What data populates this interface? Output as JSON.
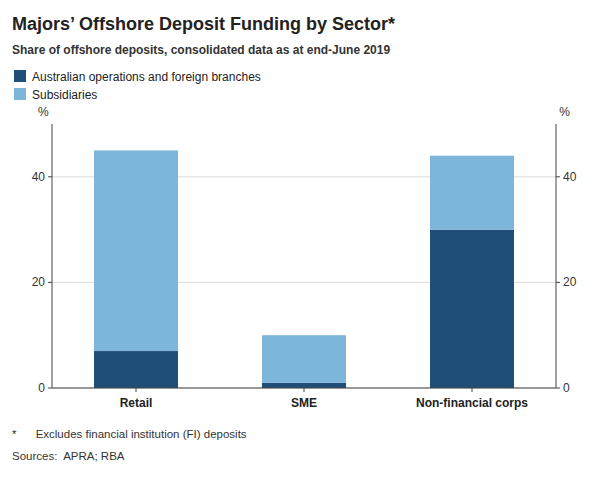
{
  "chart_data": {
    "type": "bar",
    "stacked": true,
    "title": "Majors’ Offshore Deposit Funding by Sector*",
    "subtitle": "Share of offshore deposits, consolidated data as at end-June 2019",
    "categories": [
      "Retail",
      "SME",
      "Non-financial corps"
    ],
    "series": [
      {
        "name": "Australian operations and foreign branches",
        "color": "#1f4e79",
        "values": [
          7,
          1,
          30
        ]
      },
      {
        "name": "Subsidiaries",
        "color": "#7eb6d9",
        "values": [
          38,
          9,
          14
        ]
      }
    ],
    "ylabel": "%",
    "y2label": "%",
    "ylim": [
      0,
      50
    ],
    "yticks": [
      0,
      20,
      40
    ],
    "y2lim": [
      0,
      50
    ],
    "y2ticks": [
      0,
      20,
      40
    ],
    "grid": true,
    "legend": "upper left",
    "footnotes": [
      "*      Excludes financial institution (FI) deposits",
      "Sources:  APRA; RBA"
    ]
  }
}
